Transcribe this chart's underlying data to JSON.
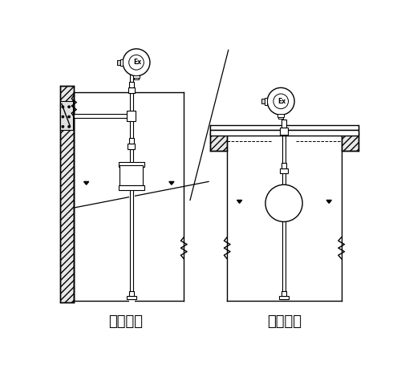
{
  "title_left": "架装固定",
  "title_right": "法兰固定",
  "bg_color": "#ffffff",
  "line_color": "#000000",
  "lw": 1.0,
  "figsize": [
    5.0,
    4.75
  ],
  "dpi": 100
}
